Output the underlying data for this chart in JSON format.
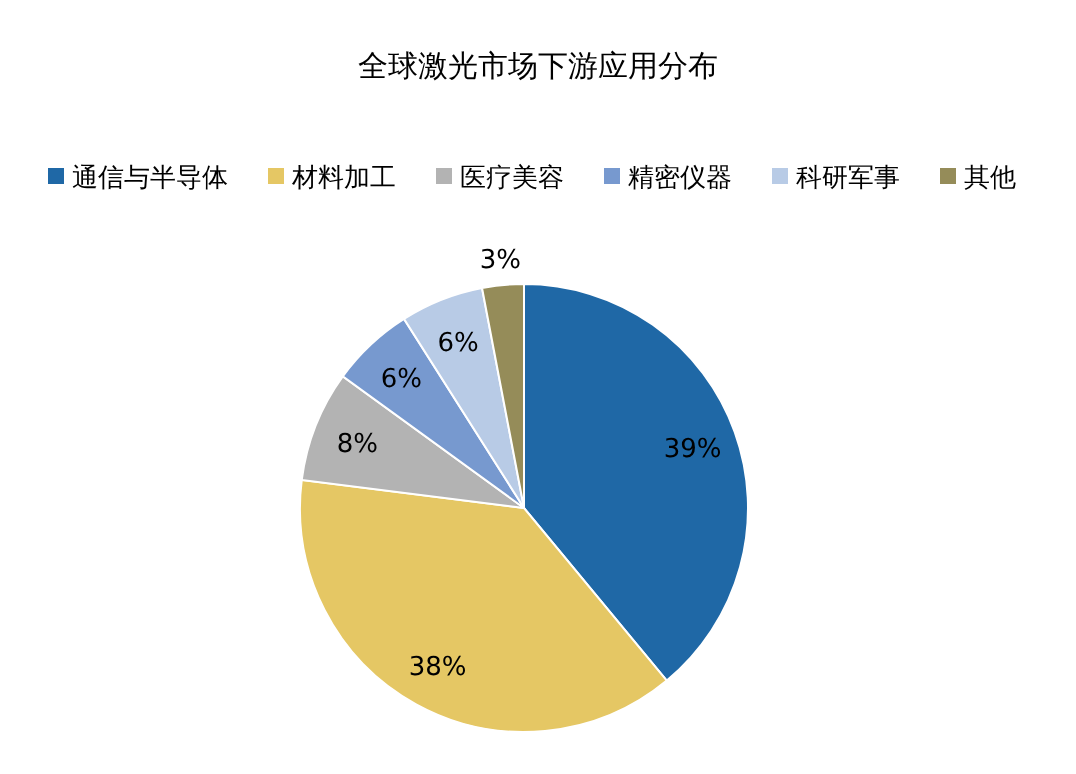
{
  "chart_data": {
    "type": "pie",
    "title": "全球激光市场下游应用分布",
    "categories": [
      "通信与半导体",
      "材料加工",
      "医疗美容",
      "精密仪器",
      "科研军事",
      "其他"
    ],
    "values": [
      39,
      38,
      8,
      6,
      6,
      3
    ],
    "value_labels": [
      "39%",
      "38%",
      "8%",
      "6%",
      "6%",
      "3%"
    ],
    "colors": [
      "#1f68a6",
      "#e5c764",
      "#b3b3b3",
      "#7799cf",
      "#b8cbe6",
      "#958c59"
    ],
    "legend": "top"
  }
}
